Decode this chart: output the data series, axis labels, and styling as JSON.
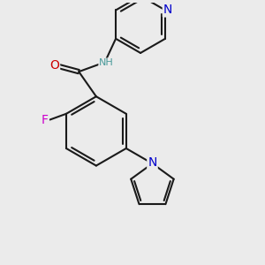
{
  "bg_color": "#ebebeb",
  "line_color": "#1a1a1a",
  "bond_width": 1.5,
  "fig_size": [
    3.0,
    3.0
  ],
  "dpi": 100,
  "colors": {
    "N": "#0000cc",
    "O": "#cc0000",
    "F": "#cc00cc",
    "NH": "#4a9a9a",
    "C": "#1a1a1a"
  },
  "font_size": 9
}
